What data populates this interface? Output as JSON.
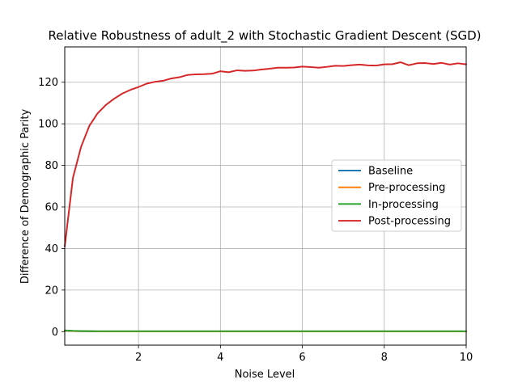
{
  "chart_data": {
    "type": "line",
    "title": "Relative Robustness of adult_2 with Stochastic Gradient Descent (SGD)",
    "xlabel": "Noise Level",
    "ylabel": "Difference of Demographic Parity",
    "xlim": [
      0.2,
      10
    ],
    "ylim": [
      -6.5,
      137
    ],
    "xticks": [
      2,
      4,
      6,
      8,
      10
    ],
    "yticks": [
      0,
      20,
      40,
      60,
      80,
      100,
      120
    ],
    "grid": true,
    "legend_position": "center-right",
    "x": [
      0.2,
      0.4,
      0.6,
      0.8,
      1.0,
      1.2,
      1.4,
      1.6,
      1.8,
      2.0,
      2.2,
      2.4,
      2.6,
      2.8,
      3.0,
      3.2,
      3.4,
      3.6,
      3.8,
      4.0,
      4.2,
      4.4,
      4.6,
      4.8,
      5.0,
      5.2,
      5.4,
      5.6,
      5.8,
      6.0,
      6.2,
      6.4,
      6.6,
      6.8,
      7.0,
      7.2,
      7.4,
      7.6,
      7.8,
      8.0,
      8.2,
      8.4,
      8.6,
      8.8,
      9.0,
      9.2,
      9.4,
      9.6,
      9.8,
      10.0
    ],
    "series": [
      {
        "name": "Baseline",
        "color": "#1f77b4",
        "values": [
          0.5,
          0.3,
          0.2,
          0.2,
          0.1,
          0.1,
          0.1,
          0.1,
          0.1,
          0.1,
          0.1,
          0.1,
          0.1,
          0.1,
          0.1,
          0.1,
          0.1,
          0.1,
          0.1,
          0.1,
          0.1,
          0.1,
          0.1,
          0.1,
          0.1,
          0.1,
          0.1,
          0.1,
          0.1,
          0.1,
          0.1,
          0.1,
          0.1,
          0.1,
          0.1,
          0.1,
          0.1,
          0.1,
          0.1,
          0.1,
          0.1,
          0.1,
          0.1,
          0.1,
          0.1,
          0.1,
          0.1,
          0.1,
          0.1,
          0.1
        ]
      },
      {
        "name": "Pre-processing",
        "color": "#ff7f0e",
        "values": [
          0.5,
          0.3,
          0.2,
          0.2,
          0.1,
          0.1,
          0.1,
          0.1,
          0.1,
          0.1,
          0.1,
          0.1,
          0.1,
          0.1,
          0.1,
          0.1,
          0.1,
          0.1,
          0.1,
          0.1,
          0.1,
          0.1,
          0.1,
          0.1,
          0.1,
          0.1,
          0.1,
          0.1,
          0.1,
          0.1,
          0.1,
          0.1,
          0.1,
          0.1,
          0.1,
          0.1,
          0.1,
          0.1,
          0.1,
          0.1,
          0.1,
          0.1,
          0.1,
          0.1,
          0.1,
          0.1,
          0.1,
          0.1,
          0.1,
          0.1
        ]
      },
      {
        "name": "In-processing",
        "color": "#2ca02c",
        "values": [
          0.6,
          0.4,
          0.3,
          0.2,
          0.2,
          0.2,
          0.2,
          0.2,
          0.2,
          0.2,
          0.2,
          0.2,
          0.2,
          0.2,
          0.2,
          0.2,
          0.2,
          0.2,
          0.2,
          0.2,
          0.2,
          0.2,
          0.2,
          0.2,
          0.2,
          0.2,
          0.2,
          0.2,
          0.2,
          0.2,
          0.2,
          0.2,
          0.2,
          0.2,
          0.2,
          0.2,
          0.2,
          0.2,
          0.2,
          0.2,
          0.2,
          0.2,
          0.2,
          0.2,
          0.2,
          0.2,
          0.2,
          0.2,
          0.2,
          0.2
        ]
      },
      {
        "name": "Post-processing",
        "color": "#d62728",
        "values": [
          41,
          74,
          89,
          99,
          105,
          109,
          112,
          114.5,
          116.3,
          117.7,
          119.3,
          120.2,
          120.7,
          121.8,
          122.4,
          123.5,
          123.8,
          123.9,
          124.1,
          125.3,
          124.8,
          125.7,
          125.5,
          125.6,
          126.1,
          126.5,
          127.0,
          127.0,
          127.1,
          127.5,
          127.3,
          127.0,
          127.4,
          127.9,
          127.8,
          128.2,
          128.5,
          128.1,
          128.0,
          128.6,
          128.7,
          129.6,
          128.2,
          129.1,
          129.2,
          128.8,
          129.3,
          128.5,
          129.1,
          128.6
        ]
      }
    ]
  }
}
